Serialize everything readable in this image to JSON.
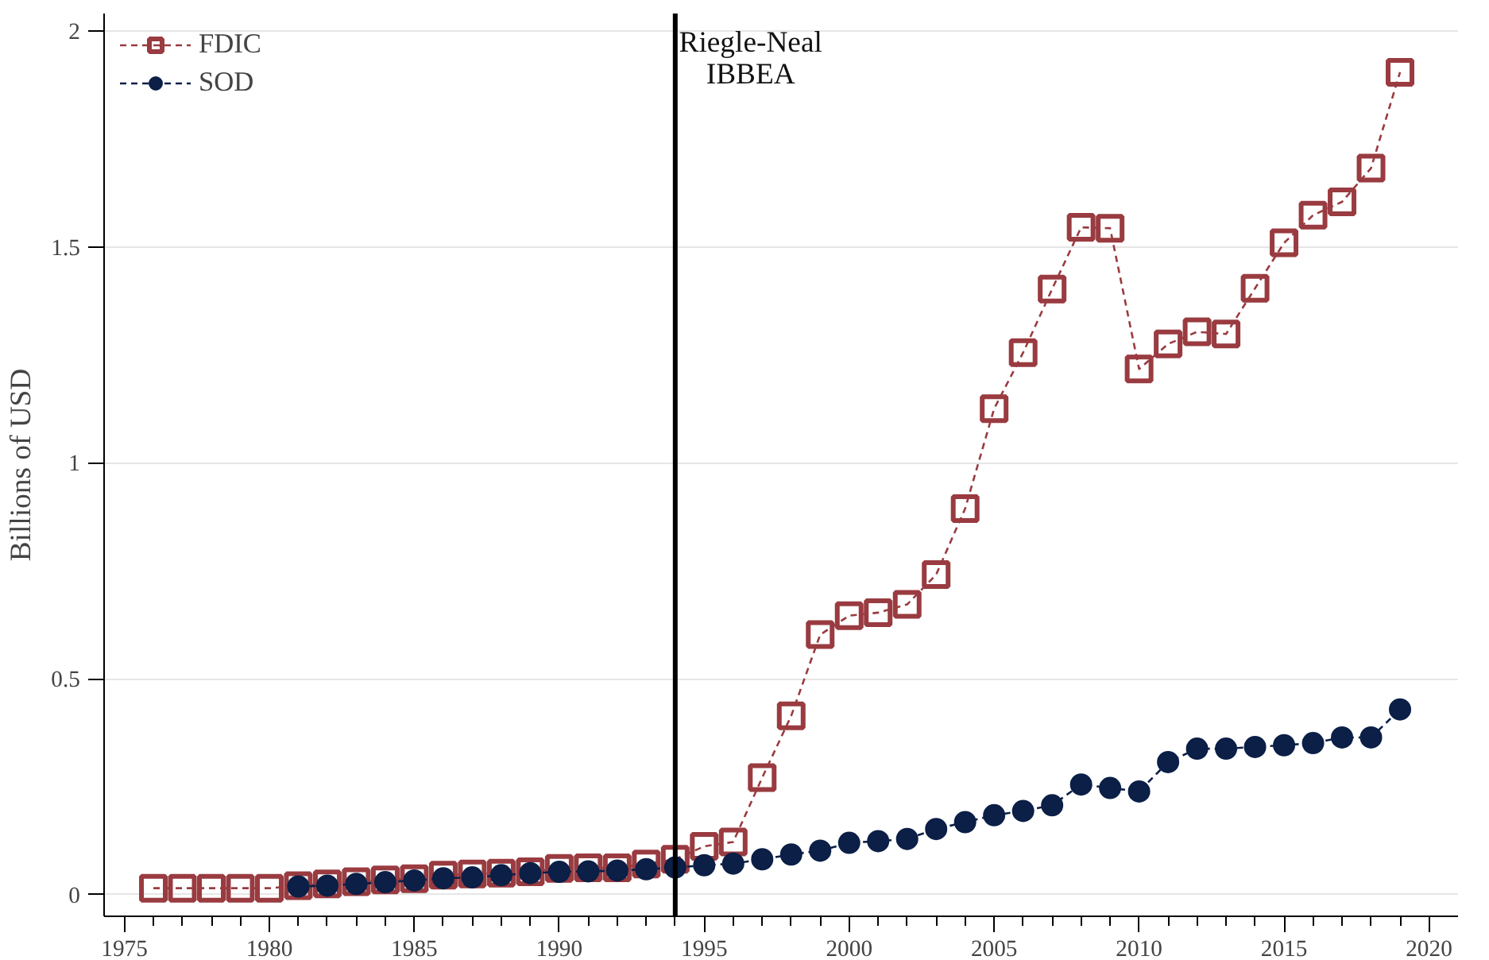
{
  "chart_data": {
    "type": "line",
    "ylabel": "Billions of USD",
    "x": [
      1976,
      1977,
      1978,
      1979,
      1980,
      1981,
      1982,
      1983,
      1984,
      1985,
      1986,
      1987,
      1988,
      1989,
      1990,
      1991,
      1992,
      1993,
      1994,
      1995,
      1996,
      1997,
      1998,
      1999,
      2000,
      2001,
      2002,
      2003,
      2004,
      2005,
      2006,
      2007,
      2008,
      2009,
      2010,
      2011,
      2012,
      2013,
      2014,
      2015,
      2016,
      2017,
      2018,
      2019
    ],
    "series": [
      {
        "name": "FDIC",
        "color": "#993b40",
        "marker": "square",
        "values": [
          0.015,
          0.015,
          0.015,
          0.015,
          0.015,
          0.021,
          0.025,
          0.03,
          0.034,
          0.037,
          0.045,
          0.048,
          0.05,
          0.053,
          0.061,
          0.062,
          0.062,
          0.071,
          0.082,
          0.112,
          0.122,
          0.271,
          0.414,
          0.602,
          0.646,
          0.653,
          0.672,
          0.741,
          0.894,
          1.125,
          1.255,
          1.402,
          1.545,
          1.543,
          1.217,
          1.275,
          1.303,
          1.298,
          1.404,
          1.509,
          1.573,
          1.604,
          1.682,
          1.904
        ]
      },
      {
        "name": "SOD",
        "color": "#0b1f47",
        "marker": "circle",
        "values": [
          null,
          null,
          null,
          null,
          null,
          0.019,
          0.021,
          0.025,
          0.029,
          0.033,
          0.038,
          0.04,
          0.045,
          0.05,
          0.053,
          0.054,
          0.056,
          0.059,
          0.063,
          0.068,
          0.072,
          0.082,
          0.093,
          0.102,
          0.12,
          0.124,
          0.129,
          0.152,
          0.168,
          0.184,
          0.194,
          0.207,
          0.255,
          0.247,
          0.239,
          0.307,
          0.338,
          0.338,
          0.342,
          0.346,
          0.351,
          0.364,
          0.364,
          0.429
        ]
      }
    ],
    "line_style": "dashed",
    "xlim": [
      1974.3,
      2021
    ],
    "ylim": [
      -0.05,
      2.04
    ],
    "xticks": [
      1975,
      {
        "value": 1976,
        "label": null
      },
      {
        "value": 1977,
        "label": null
      },
      {
        "value": 1978,
        "label": null
      },
      {
        "value": 1979,
        "label": null
      },
      1980,
      {
        "value": 1981,
        "label": null
      },
      {
        "value": 1982,
        "label": null
      },
      {
        "value": 1983,
        "label": null
      },
      {
        "value": 1984,
        "label": null
      },
      1985,
      {
        "value": 1986,
        "label": null
      },
      {
        "value": 1987,
        "label": null
      },
      {
        "value": 1988,
        "label": null
      },
      {
        "value": 1989,
        "label": null
      },
      1990,
      {
        "value": 1991,
        "label": null
      },
      {
        "value": 1992,
        "label": null
      },
      {
        "value": 1993,
        "label": null
      },
      {
        "value": 1994,
        "label": null
      },
      1995,
      {
        "value": 1996,
        "label": null
      },
      {
        "value": 1997,
        "label": null
      },
      {
        "value": 1998,
        "label": null
      },
      {
        "value": 1999,
        "label": null
      },
      2000,
      {
        "value": 2001,
        "label": null
      },
      {
        "value": 2002,
        "label": null
      },
      {
        "value": 2003,
        "label": null
      },
      {
        "value": 2004,
        "label": null
      },
      2005,
      {
        "value": 2006,
        "label": null
      },
      {
        "value": 2007,
        "label": null
      },
      {
        "value": 2008,
        "label": null
      },
      {
        "value": 2009,
        "label": null
      },
      2010,
      {
        "value": 2011,
        "label": null
      },
      {
        "value": 2012,
        "label": null
      },
      {
        "value": 2013,
        "label": null
      },
      {
        "value": 2014,
        "label": null
      },
      2015,
      {
        "value": 2016,
        "label": null
      },
      {
        "value": 2017,
        "label": null
      },
      {
        "value": 2018,
        "label": null
      },
      {
        "value": 2019,
        "label": null
      },
      2020
    ],
    "yticks": [
      0,
      0.5,
      1,
      1.5,
      2
    ],
    "ref_lines": [
      {
        "axis": "x",
        "value": 1994,
        "label": "Riegle-Neal\nIBBEA",
        "color": "#000000"
      }
    ],
    "grid": "y",
    "legend": "top left"
  }
}
